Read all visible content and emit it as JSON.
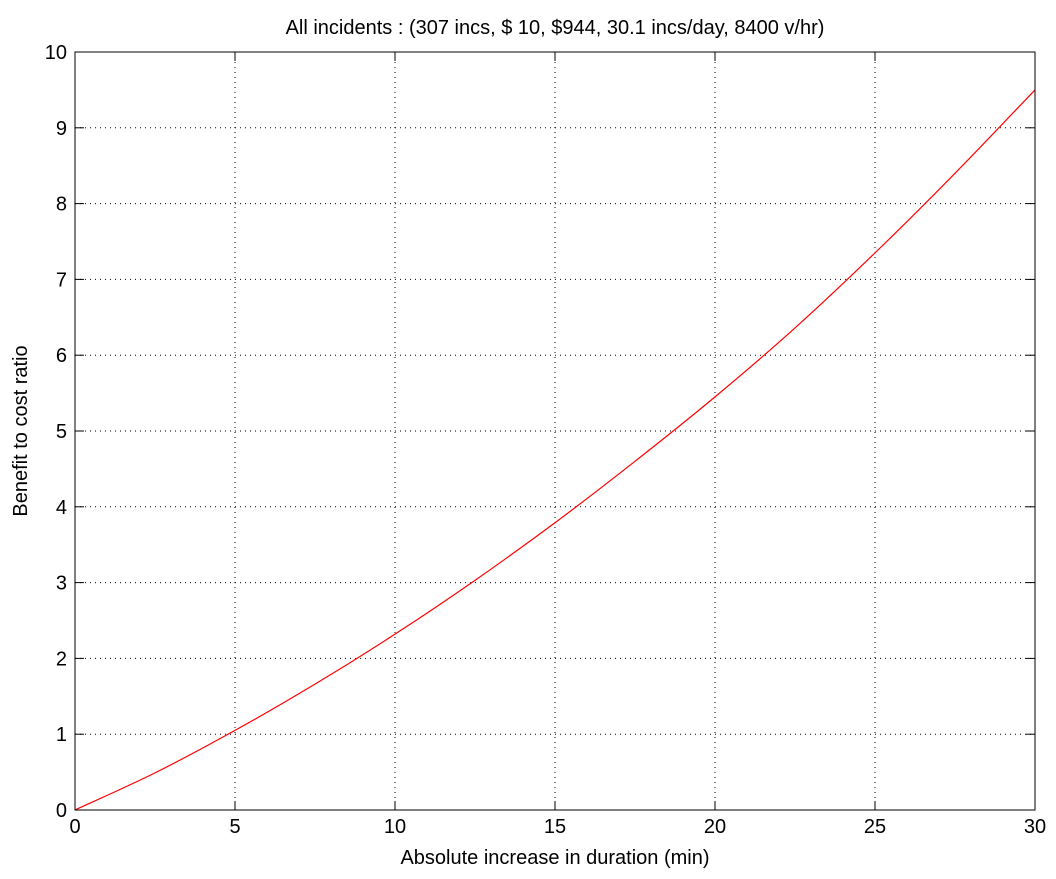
{
  "chart_data": {
    "type": "line",
    "title": "All incidents : (307 incs, $ 10, $944, 30.1 incs/day,  8400 v/hr)",
    "xlabel": "Absolute increase in duration (min)",
    "ylabel": "Benefit to cost ratio",
    "xlim": [
      0,
      30
    ],
    "ylim": [
      0,
      10
    ],
    "xticks": [
      0,
      5,
      10,
      15,
      20,
      25,
      30
    ],
    "yticks": [
      0,
      1,
      2,
      3,
      4,
      5,
      6,
      7,
      8,
      9,
      10
    ],
    "grid": true,
    "series": [
      {
        "color": "#ff0000",
        "x": [
          0,
          2.5,
          5,
          7.5,
          10,
          12.5,
          15,
          17.5,
          20,
          22.5,
          25,
          27.5,
          30
        ],
        "y": [
          0,
          0.49,
          1.05,
          1.66,
          2.32,
          3.03,
          3.79,
          4.6,
          5.45,
          6.36,
          7.35,
          8.4,
          9.5
        ]
      }
    ]
  },
  "colors": {
    "background": "#ffffff",
    "axes": "#000000",
    "grid": "#000000",
    "line": "#ff0000"
  }
}
